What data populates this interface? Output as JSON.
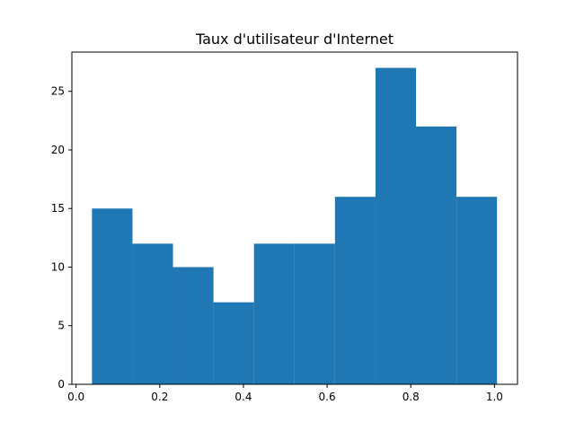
{
  "chart_data": {
    "type": "bar",
    "title": "Taux d'utilisateur d'Internet",
    "xlabel": "",
    "ylabel": "",
    "bin_edges": [
      0.038,
      0.1348,
      0.2316,
      0.3284,
      0.4252,
      0.522,
      0.6188,
      0.7156,
      0.8124,
      0.9092,
      1.006
    ],
    "values": [
      15,
      12,
      10,
      7,
      12,
      12,
      16,
      27,
      22,
      16
    ],
    "xlim": [
      -0.01,
      1.055
    ],
    "ylim": [
      0,
      28.35
    ],
    "x_ticks": [
      {
        "value": 0.0,
        "label": "0.0"
      },
      {
        "value": 0.2,
        "label": "0.2"
      },
      {
        "value": 0.4,
        "label": "0.4"
      },
      {
        "value": 0.6,
        "label": "0.6"
      },
      {
        "value": 0.8,
        "label": "0.8"
      },
      {
        "value": 1.0,
        "label": "1.0"
      }
    ],
    "y_ticks": [
      {
        "value": 0,
        "label": "0"
      },
      {
        "value": 5,
        "label": "5"
      },
      {
        "value": 10,
        "label": "10"
      },
      {
        "value": 15,
        "label": "15"
      },
      {
        "value": 20,
        "label": "20"
      },
      {
        "value": 25,
        "label": "25"
      }
    ],
    "bar_color": "#1f77b4",
    "grid": false,
    "legend": "none"
  }
}
